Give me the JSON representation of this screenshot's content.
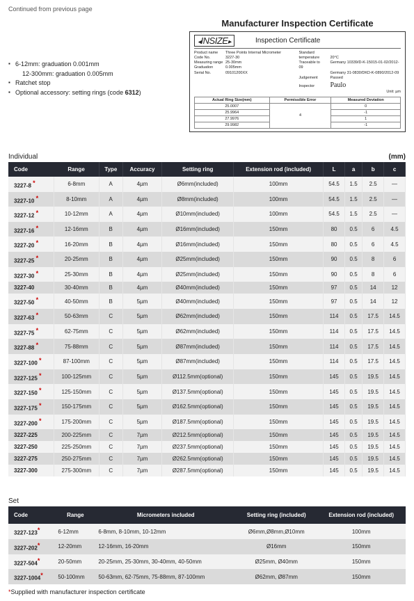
{
  "header": {
    "continued": "Continued from previous page"
  },
  "notes": {
    "l1": "6-12mm: graduation 0.001mm",
    "l1b": "12-300mm: graduation 0.005mm",
    "l2": "Ratchet stop",
    "l3_pre": "Optional accessory: setting rings (code ",
    "l3_code": "6312",
    "l3_post": ")"
  },
  "cert": {
    "title": "Manufacturer Inspection Certificate",
    "logo": "INSIZE",
    "sub": "Inspection  Certificate",
    "fields": {
      "pn_k": "Product name",
      "pn_v": "Three Points Internal Micrometer",
      "cn_k": "Code No.",
      "cn_v": "3227-30",
      "mr_k": "Measuring range",
      "mr_v": "25-30mm",
      "gr_k": "Graduation",
      "gr_v": "0.005mm",
      "sn_k": "Serial No.",
      "sn_v": "09101200XX",
      "st_k": "Standard temperature",
      "st_v": "20°C",
      "tr_k": "Traceable to",
      "tr_v1": "Germany 10339/D-K-15015-01-02/2012-09",
      "tr_v2": "Germany 31-0830/DKD-K-0890/2012-09",
      "jd_k": "Judgement",
      "jd_v": "Passed",
      "in_k": "Inspector",
      "in_v": "Paulo"
    },
    "unit": "Unit: µm",
    "th1": "Actual Ring Size(mm)",
    "th2": "Permissible Error",
    "th3": "Measured Deviation",
    "r1a": "25.0007",
    "r1c": "0",
    "r2a": "25.9964",
    "r2b": "4",
    "r2c": "-1",
    "r3a": "27.9976",
    "r3c": "1",
    "r4a": "29.9982",
    "r4c": "-1"
  },
  "individual": {
    "label": "Individual",
    "unit": "(mm)",
    "h": {
      "code": "Code",
      "range": "Range",
      "type": "Type",
      "acc": "Accuracy",
      "ring": "Setting ring",
      "ext": "Extension rod (included)",
      "L": "L",
      "a": "a",
      "b": "b",
      "c": "c"
    },
    "rows": [
      {
        "code": "3227-8",
        "star": true,
        "range": "6-8mm",
        "type": "A",
        "acc": "4µm",
        "ring": "Ø6mm(included)",
        "ext": "100mm",
        "L": "54.5",
        "a": "1.5",
        "b": "2.5",
        "c": "—"
      },
      {
        "code": "3227-10",
        "star": true,
        "range": "8-10mm",
        "type": "A",
        "acc": "4µm",
        "ring": "Ø8mm(included)",
        "ext": "100mm",
        "L": "54.5",
        "a": "1.5",
        "b": "2.5",
        "c": "—"
      },
      {
        "code": "3227-12",
        "star": true,
        "range": "10-12mm",
        "type": "A",
        "acc": "4µm",
        "ring": "Ø10mm(included)",
        "ext": "100mm",
        "L": "54.5",
        "a": "1.5",
        "b": "2.5",
        "c": "—"
      },
      {
        "code": "3227-16",
        "star": true,
        "range": "12-16mm",
        "type": "B",
        "acc": "4µm",
        "ring": "Ø16mm(included)",
        "ext": "150mm",
        "L": "80",
        "a": "0.5",
        "b": "6",
        "c": "4.5"
      },
      {
        "code": "3227-20",
        "star": true,
        "range": "16-20mm",
        "type": "B",
        "acc": "4µm",
        "ring": "Ø16mm(included)",
        "ext": "150mm",
        "L": "80",
        "a": "0.5",
        "b": "6",
        "c": "4.5"
      },
      {
        "code": "3227-25",
        "star": true,
        "range": "20-25mm",
        "type": "B",
        "acc": "4µm",
        "ring": "Ø25mm(included)",
        "ext": "150mm",
        "L": "90",
        "a": "0.5",
        "b": "8",
        "c": "6"
      },
      {
        "code": "3227-30",
        "star": true,
        "range": "25-30mm",
        "type": "B",
        "acc": "4µm",
        "ring": "Ø25mm(included)",
        "ext": "150mm",
        "L": "90",
        "a": "0.5",
        "b": "8",
        "c": "6"
      },
      {
        "code": "3227-40",
        "star": false,
        "range": "30-40mm",
        "type": "B",
        "acc": "4µm",
        "ring": "Ø40mm(included)",
        "ext": "150mm",
        "L": "97",
        "a": "0.5",
        "b": "14",
        "c": "12"
      },
      {
        "code": "3227-50",
        "star": true,
        "range": "40-50mm",
        "type": "B",
        "acc": "5µm",
        "ring": "Ø40mm(included)",
        "ext": "150mm",
        "L": "97",
        "a": "0.5",
        "b": "14",
        "c": "12"
      },
      {
        "code": "3227-63",
        "star": true,
        "range": "50-63mm",
        "type": "C",
        "acc": "5µm",
        "ring": "Ø62mm(included)",
        "ext": "150mm",
        "L": "114",
        "a": "0.5",
        "b": "17.5",
        "c": "14.5"
      },
      {
        "code": "3227-75",
        "star": true,
        "range": "62-75mm",
        "type": "C",
        "acc": "5µm",
        "ring": "Ø62mm(included)",
        "ext": "150mm",
        "L": "114",
        "a": "0.5",
        "b": "17.5",
        "c": "14.5"
      },
      {
        "code": "3227-88",
        "star": true,
        "range": "75-88mm",
        "type": "C",
        "acc": "5µm",
        "ring": "Ø87mm(included)",
        "ext": "150mm",
        "L": "114",
        "a": "0.5",
        "b": "17.5",
        "c": "14.5"
      },
      {
        "code": "3227-100",
        "star": true,
        "range": "87-100mm",
        "type": "C",
        "acc": "5µm",
        "ring": "Ø87mm(included)",
        "ext": "150mm",
        "L": "114",
        "a": "0.5",
        "b": "17.5",
        "c": "14.5"
      },
      {
        "code": "3227-125",
        "star": true,
        "range": "100-125mm",
        "type": "C",
        "acc": "5µm",
        "ring": "Ø112.5mm(optional)",
        "ext": "150mm",
        "L": "145",
        "a": "0.5",
        "b": "19.5",
        "c": "14.5"
      },
      {
        "code": "3227-150",
        "star": true,
        "range": "125-150mm",
        "type": "C",
        "acc": "5µm",
        "ring": "Ø137.5mm(optional)",
        "ext": "150mm",
        "L": "145",
        "a": "0.5",
        "b": "19.5",
        "c": "14.5"
      },
      {
        "code": "3227-175",
        "star": true,
        "range": "150-175mm",
        "type": "C",
        "acc": "5µm",
        "ring": "Ø162.5mm(optional)",
        "ext": "150mm",
        "L": "145",
        "a": "0.5",
        "b": "19.5",
        "c": "14.5"
      },
      {
        "code": "3227-200",
        "star": true,
        "range": "175-200mm",
        "type": "C",
        "acc": "5µm",
        "ring": "Ø187.5mm(optional)",
        "ext": "150mm",
        "L": "145",
        "a": "0.5",
        "b": "19.5",
        "c": "14.5"
      },
      {
        "code": "3227-225",
        "star": false,
        "range": "200-225mm",
        "type": "C",
        "acc": "7µm",
        "ring": "Ø212.5mm(optional)",
        "ext": "150mm",
        "L": "145",
        "a": "0.5",
        "b": "19.5",
        "c": "14.5"
      },
      {
        "code": "3227-250",
        "star": false,
        "range": "225-250mm",
        "type": "C",
        "acc": "7µm",
        "ring": "Ø237.5mm(optional)",
        "ext": "150mm",
        "L": "145",
        "a": "0.5",
        "b": "19.5",
        "c": "14.5"
      },
      {
        "code": "3227-275",
        "star": false,
        "range": "250-275mm",
        "type": "C",
        "acc": "7µm",
        "ring": "Ø262.5mm(optional)",
        "ext": "150mm",
        "L": "145",
        "a": "0.5",
        "b": "19.5",
        "c": "14.5"
      },
      {
        "code": "3227-300",
        "star": false,
        "range": "275-300mm",
        "type": "C",
        "acc": "7µm",
        "ring": "Ø287.5mm(optional)",
        "ext": "150mm",
        "L": "145",
        "a": "0.5",
        "b": "19.5",
        "c": "14.5"
      }
    ]
  },
  "set": {
    "label": "Set",
    "h": {
      "code": "Code",
      "range": "Range",
      "mic": "Micrometers included",
      "ring": "Setting ring (included)",
      "ext": "Extension rod (included)"
    },
    "rows": [
      {
        "code": "3227-123",
        "star": true,
        "range": "6-12mm",
        "mic": "6-8mm, 8-10mm, 10-12mm",
        "ring": "Ø6mm,Ø8mm,Ø10mm",
        "ext": "100mm"
      },
      {
        "code": "3227-202",
        "star": true,
        "range": "12-20mm",
        "mic": "12-16mm, 16-20mm",
        "ring": "Ø16mm",
        "ext": "150mm"
      },
      {
        "code": "3227-504",
        "star": true,
        "range": "20-50mm",
        "mic": "20-25mm, 25-30mm, 30-40mm, 40-50mm",
        "ring": "Ø25mm, Ø40mm",
        "ext": "150mm"
      },
      {
        "code": "3227-1004",
        "star": true,
        "range": "50-100mm",
        "mic": "50-63mm, 62-75mm, 75-88mm, 87-100mm",
        "ring": "Ø62mm, Ø87mm",
        "ext": "150mm"
      }
    ]
  },
  "footnote": "Supplied with manufacturer inspection certificate"
}
